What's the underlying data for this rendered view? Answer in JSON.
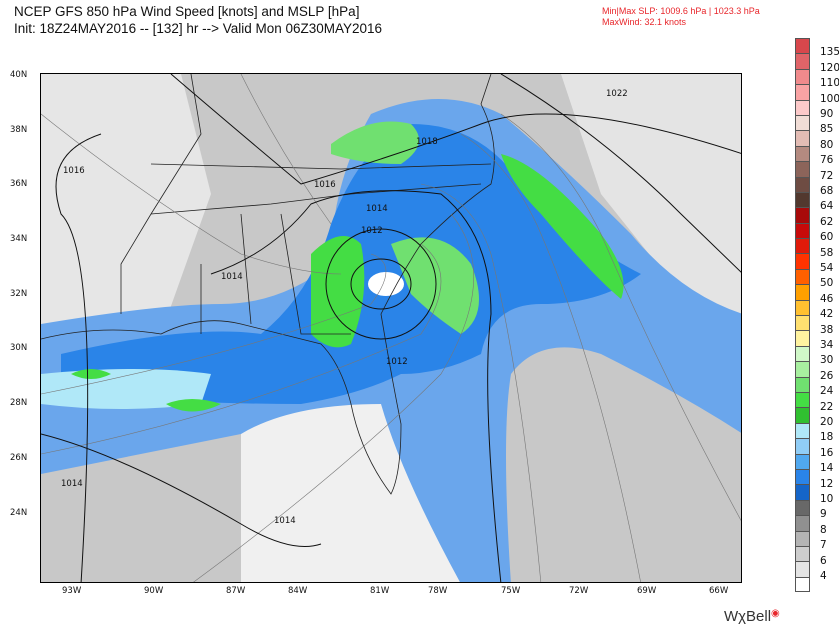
{
  "header": {
    "title": "NCEP GFS 850 hPa Wind Speed [knots] and MSLP [hPa]",
    "subtitle": "Init: 18Z24MAY2016 -- [132] hr --> Valid Mon 06Z30MAY2016",
    "slp_minmax": "Min|Max SLP: 1009.6 hPa | 1023.3 hPa",
    "max_wind": "MaxWind: 32.1 knots"
  },
  "map": {
    "lat_labels": [
      "40N",
      "38N",
      "36N",
      "34N",
      "32N",
      "30N",
      "28N",
      "26N",
      "24N"
    ],
    "lon_labels": [
      "93W",
      "90W",
      "87W",
      "84W",
      "81W",
      "78W",
      "75W",
      "72W",
      "69W",
      "66W"
    ],
    "isobar_labels": [
      "1022",
      "1018",
      "1016",
      "1016",
      "1014",
      "1014",
      "1012",
      "1012",
      "1014",
      "1014"
    ]
  },
  "colorbar": {
    "labels": [
      "135",
      "120",
      "110",
      "100",
      "90",
      "85",
      "80",
      "76",
      "72",
      "68",
      "64",
      "62",
      "60",
      "58",
      "54",
      "50",
      "46",
      "42",
      "38",
      "34",
      "30",
      "26",
      "24",
      "22",
      "20",
      "18",
      "16",
      "14",
      "12",
      "10",
      "9",
      "8",
      "7",
      "6",
      "4"
    ],
    "colors": [
      "#d8474c",
      "#e06468",
      "#f08a8c",
      "#f9a3a4",
      "#fcc9c9",
      "#f1ddd6",
      "#e3bcb4",
      "#b48a80",
      "#8c645a",
      "#6e4c43",
      "#52382e",
      "#a80a0a",
      "#c80a0a",
      "#e01a0a",
      "#ff3300",
      "#ff6000",
      "#ffa000",
      "#ffc030",
      "#ffe070",
      "#fff3a0",
      "#d0f8c8",
      "#a8f0a0",
      "#70e070",
      "#44dd44",
      "#30c030",
      "#b0e8f8",
      "#90cdf6",
      "#50a8ef",
      "#2a84e8",
      "#1565c8",
      "#686868",
      "#909090",
      "#b4b4b4",
      "#cdcdcd",
      "#e4e4e4",
      "#ffffff"
    ]
  },
  "logo": {
    "text": "WxBell"
  }
}
